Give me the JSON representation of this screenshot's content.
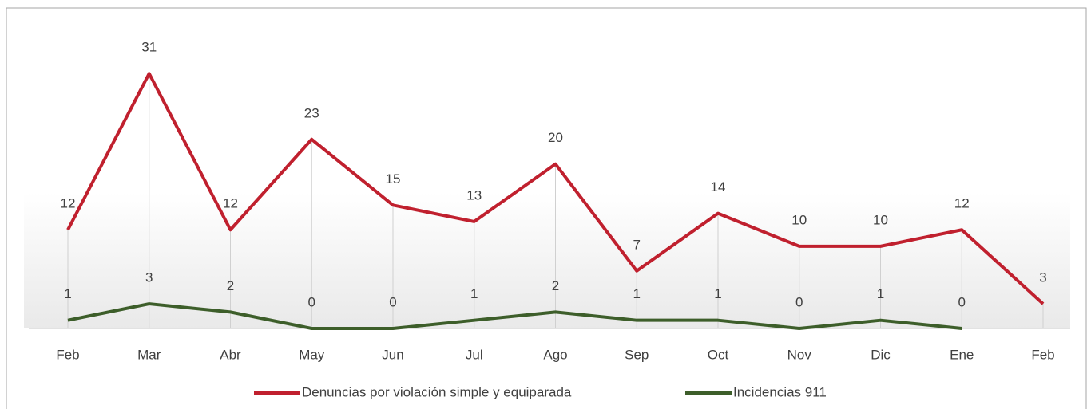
{
  "chart_data": {
    "type": "line",
    "categories": [
      "Feb",
      "Mar",
      "Abr",
      "May",
      "Jun",
      "Jul",
      "Ago",
      "Sep",
      "Oct",
      "Nov",
      "Dic",
      "Ene",
      "Feb"
    ],
    "series": [
      {
        "name": "Denuncias por violación simple y equiparada",
        "color": "#c0202e",
        "values": [
          12,
          31,
          12,
          23,
          15,
          13,
          20,
          7,
          14,
          10,
          10,
          12,
          3
        ]
      },
      {
        "name": "Incidencias 911",
        "color": "#3d5e2a",
        "values": [
          1,
          3,
          2,
          0,
          0,
          1,
          2,
          1,
          1,
          0,
          1,
          0,
          null
        ]
      }
    ],
    "ylim": [
      0,
      35
    ],
    "drop_lines": true,
    "legend": "bottom"
  }
}
